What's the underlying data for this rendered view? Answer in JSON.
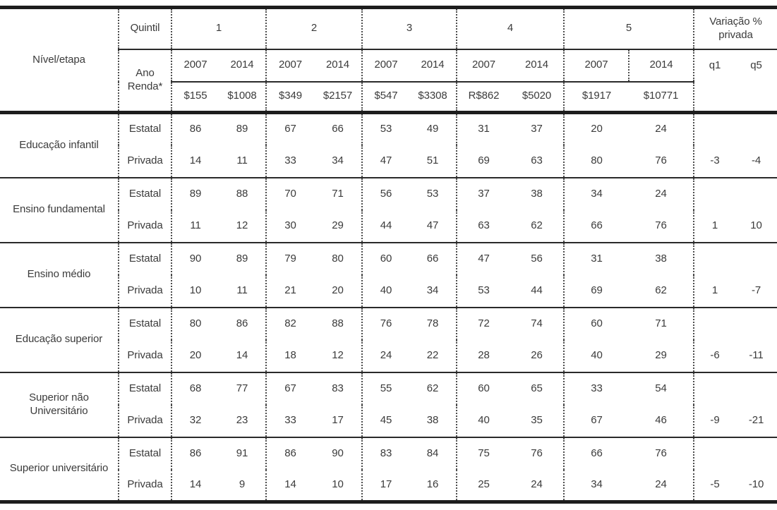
{
  "table": {
    "header": {
      "nivel_etapa": "Nível/etapa",
      "quintil_label": "Quintil",
      "quintils": [
        "1",
        "2",
        "3",
        "4",
        "5"
      ],
      "ano_label": "Ano",
      "renda_label": "Renda*",
      "year_2007": "2007",
      "year_2014": "2014",
      "renda_values": [
        "$155",
        "$1008",
        "$349",
        "$2157",
        "$547",
        "$3308",
        "R$862",
        "$5020",
        "$1917",
        "$10771"
      ],
      "variacao_label": "Variação % privada",
      "variacao_cols": [
        "q1",
        "q5"
      ]
    },
    "sector_labels": {
      "estatal": "Estatal",
      "privada": "Privada"
    },
    "rows": [
      {
        "nivel": "Educação infantil",
        "estatal": [
          "86",
          "89",
          "67",
          "66",
          "53",
          "49",
          "31",
          "37",
          "20",
          "24"
        ],
        "privada": [
          "14",
          "11",
          "33",
          "34",
          "47",
          "51",
          "69",
          "63",
          "80",
          "76"
        ],
        "variacao": [
          "-3",
          "-4"
        ]
      },
      {
        "nivel": "Ensino fundamental",
        "estatal": [
          "89",
          "88",
          "70",
          "71",
          "56",
          "53",
          "37",
          "38",
          "34",
          "24"
        ],
        "privada": [
          "11",
          "12",
          "30",
          "29",
          "44",
          "47",
          "63",
          "62",
          "66",
          "76"
        ],
        "variacao": [
          "1",
          "10"
        ]
      },
      {
        "nivel": "Ensino médio",
        "estatal": [
          "90",
          "89",
          "79",
          "80",
          "60",
          "66",
          "47",
          "56",
          "31",
          "38"
        ],
        "privada": [
          "10",
          "11",
          "21",
          "20",
          "40",
          "34",
          "53",
          "44",
          "69",
          "62"
        ],
        "variacao": [
          "1",
          "-7"
        ]
      },
      {
        "nivel": "Educação superior",
        "estatal": [
          "80",
          "86",
          "82",
          "88",
          "76",
          "78",
          "72",
          "74",
          "60",
          "71"
        ],
        "privada": [
          "20",
          "14",
          "18",
          "12",
          "24",
          "22",
          "28",
          "26",
          "40",
          "29"
        ],
        "variacao": [
          "-6",
          "-11"
        ]
      },
      {
        "nivel": "Superior não Universitário",
        "estatal": [
          "68",
          "77",
          "67",
          "83",
          "55",
          "62",
          "60",
          "65",
          "33",
          "54"
        ],
        "privada": [
          "32",
          "23",
          "33",
          "17",
          "45",
          "38",
          "40",
          "35",
          "67",
          "46"
        ],
        "variacao": [
          "-9",
          "-21"
        ]
      },
      {
        "nivel": "Superior universitário",
        "estatal": [
          "86",
          "91",
          "86",
          "90",
          "83",
          "84",
          "75",
          "76",
          "66",
          "76"
        ],
        "privada": [
          "14",
          "9",
          "14",
          "10",
          "17",
          "16",
          "25",
          "24",
          "34",
          "24"
        ],
        "variacao": [
          "-5",
          "-10"
        ]
      }
    ]
  },
  "colors": {
    "line_thick": "#1d1d1d",
    "line_thin": "#2a2a2a",
    "line_dotted": "#4d4d4d",
    "text": "#3b3b3b",
    "background": "#ffffff"
  }
}
